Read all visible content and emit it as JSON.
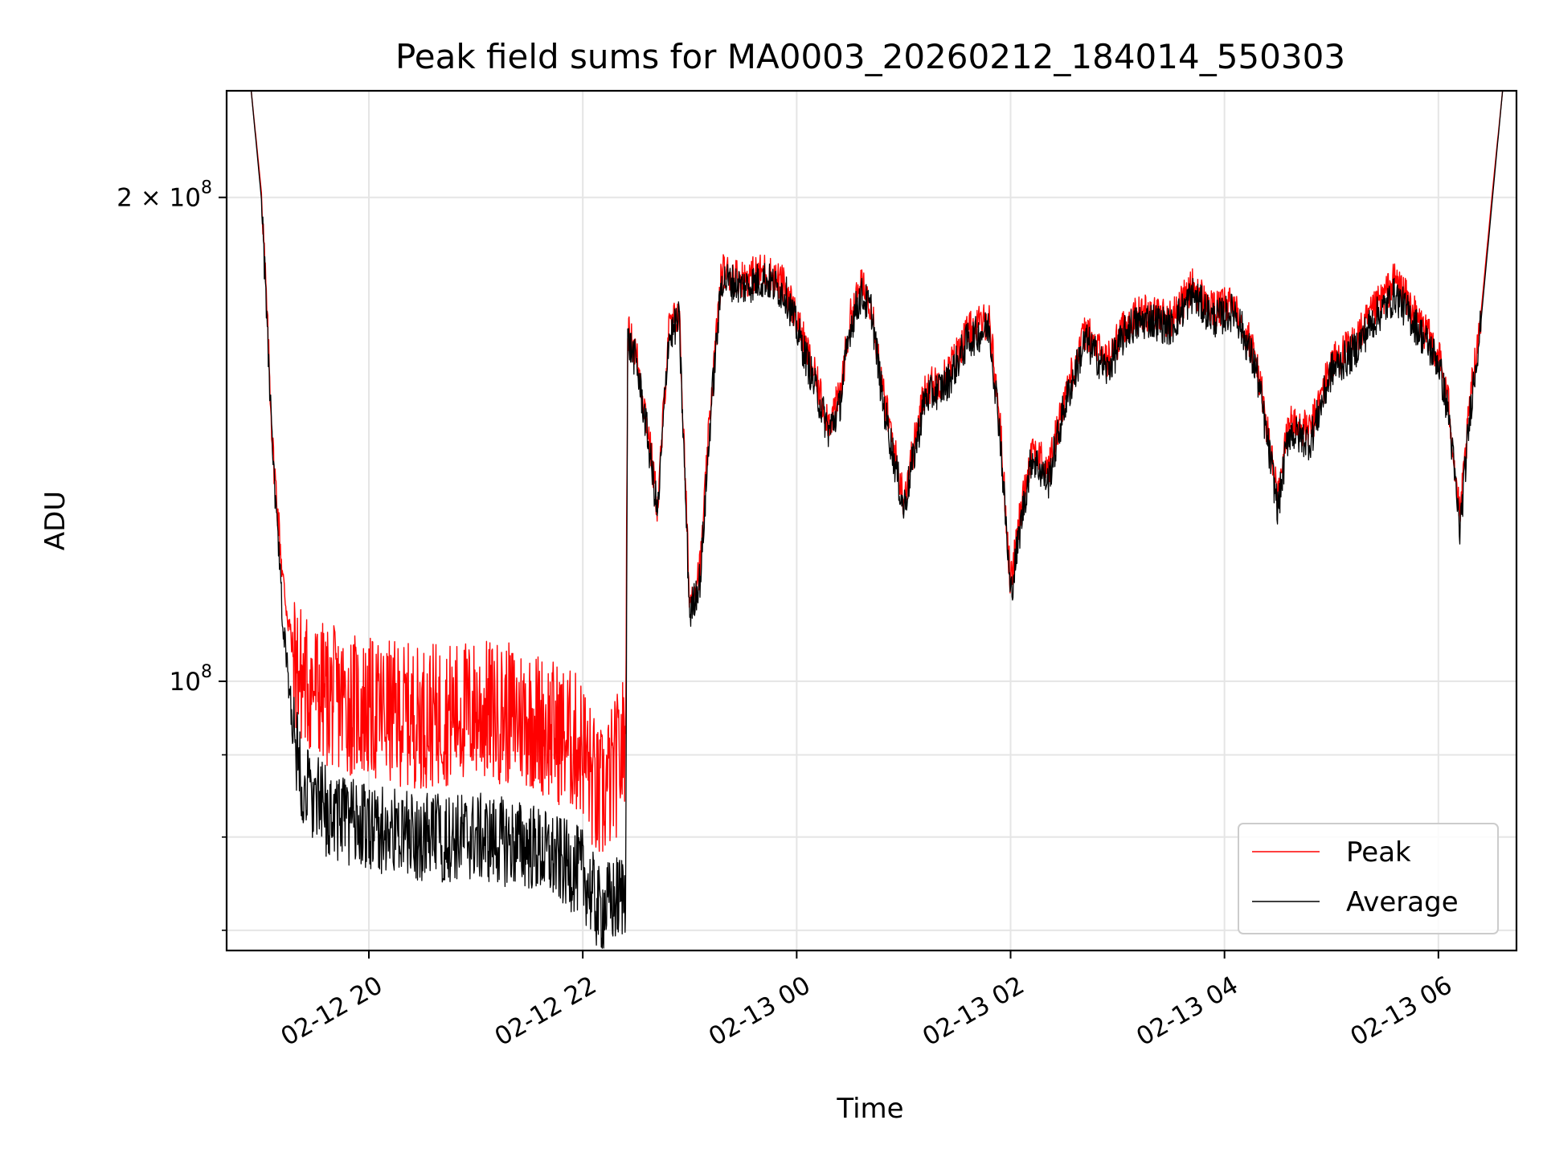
{
  "chart_data": {
    "type": "line",
    "title": "Peak field sums for MA0003_20260212_184014_550303",
    "xlabel": "Time",
    "ylabel": "ADU",
    "y_scale": "log",
    "ylim": [
      68000000,
      233000000
    ],
    "xlim_hours": [
      18.67,
      30.73
    ],
    "grid": true,
    "legend_position": "lower-right",
    "x_ticks": [
      {
        "label": "02-12 20",
        "hour": 20
      },
      {
        "label": "02-12 22",
        "hour": 22
      },
      {
        "label": "02-13 00",
        "hour": 24
      },
      {
        "label": "02-13 02",
        "hour": 26
      },
      {
        "label": "02-13 04",
        "hour": 28
      },
      {
        "label": "02-13 06",
        "hour": 30
      }
    ],
    "y_major_ticks": [
      {
        "label_base": "2 × 10",
        "label_exp": "8",
        "value": 200000000
      },
      {
        "label_base": "10",
        "label_exp": "8",
        "value": 100000000
      }
    ],
    "y_minor_ticks": [
      70000000,
      80000000,
      90000000
    ],
    "series": [
      {
        "name": "Peak",
        "color": "#ff0000",
        "x_hours": [
          18.67,
          18.9,
          19.0,
          19.1,
          19.2,
          19.3,
          19.4,
          19.6,
          19.8,
          20.0,
          20.5,
          21.0,
          21.5,
          22.0,
          22.15,
          22.3,
          22.4,
          22.42,
          22.5,
          22.6,
          22.7,
          22.8,
          22.9,
          23.0,
          23.1,
          23.2,
          23.3,
          23.5,
          23.7,
          23.9,
          24.1,
          24.3,
          24.4,
          24.5,
          24.6,
          24.7,
          24.8,
          25.0,
          25.2,
          25.4,
          25.6,
          25.8,
          25.9,
          26.0,
          26.1,
          26.2,
          26.35,
          26.5,
          26.7,
          26.9,
          27.1,
          27.3,
          27.5,
          27.7,
          27.9,
          28.1,
          28.3,
          28.5,
          28.6,
          28.8,
          29.0,
          29.2,
          29.4,
          29.6,
          29.8,
          30.0,
          30.1,
          30.2,
          30.3,
          30.4,
          30.5,
          30.6,
          30.73
        ],
        "values": [
          233000000,
          233000000,
          200000000,
          140000000,
          115000000,
          103000000,
          100000000,
          98000000,
          97000000,
          96000000,
          95000000,
          96000000,
          95000000,
          91000000,
          84000000,
          88000000,
          92000000,
          165000000,
          160000000,
          145000000,
          128000000,
          165000000,
          170000000,
          112000000,
          118000000,
          150000000,
          180000000,
          178000000,
          180000000,
          176000000,
          160000000,
          145000000,
          150000000,
          168000000,
          176000000,
          172000000,
          152000000,
          130000000,
          152000000,
          155000000,
          165000000,
          168000000,
          145000000,
          115000000,
          128000000,
          140000000,
          135000000,
          150000000,
          165000000,
          158000000,
          168000000,
          170000000,
          168000000,
          176000000,
          170000000,
          172000000,
          158000000,
          130000000,
          145000000,
          143000000,
          158000000,
          162000000,
          170000000,
          178000000,
          168000000,
          160000000,
          148000000,
          126000000,
          150000000,
          170000000,
          200000000,
          233000000,
          233000000
        ]
      },
      {
        "name": "Average",
        "color": "#000000",
        "x_hours": [
          18.67,
          18.9,
          19.0,
          19.1,
          19.2,
          19.3,
          19.4,
          19.6,
          19.8,
          20.0,
          20.5,
          21.0,
          21.5,
          22.0,
          22.15,
          22.3,
          22.4,
          22.42,
          22.5,
          22.6,
          22.7,
          22.8,
          22.9,
          23.0,
          23.1,
          23.2,
          23.3,
          23.5,
          23.7,
          23.9,
          24.1,
          24.3,
          24.4,
          24.5,
          24.6,
          24.7,
          24.8,
          25.0,
          25.2,
          25.4,
          25.6,
          25.8,
          25.9,
          26.0,
          26.1,
          26.2,
          26.35,
          26.5,
          26.7,
          26.9,
          27.1,
          27.3,
          27.5,
          27.7,
          27.9,
          28.1,
          28.3,
          28.5,
          28.6,
          28.8,
          29.0,
          29.2,
          29.4,
          29.6,
          29.8,
          30.0,
          30.1,
          30.2,
          30.3,
          30.4,
          30.5,
          30.6,
          30.73
        ],
        "values": [
          233000000,
          233000000,
          198000000,
          138000000,
          108000000,
          92000000,
          86000000,
          83000000,
          82000000,
          81000000,
          80000000,
          80000000,
          79000000,
          76000000,
          72000000,
          73000000,
          74000000,
          163000000,
          158000000,
          143000000,
          127000000,
          163000000,
          168000000,
          110000000,
          116000000,
          148000000,
          178000000,
          176000000,
          178000000,
          174000000,
          158000000,
          143000000,
          148000000,
          166000000,
          174000000,
          170000000,
          150000000,
          128000000,
          150000000,
          153000000,
          163000000,
          166000000,
          143000000,
          113000000,
          126000000,
          138000000,
          133000000,
          148000000,
          163000000,
          156000000,
          166000000,
          168000000,
          166000000,
          174000000,
          168000000,
          170000000,
          156000000,
          128000000,
          143000000,
          141000000,
          156000000,
          160000000,
          168000000,
          174000000,
          166000000,
          158000000,
          146000000,
          124000000,
          148000000,
          168000000,
          198000000,
          233000000,
          233000000
        ]
      }
    ]
  }
}
